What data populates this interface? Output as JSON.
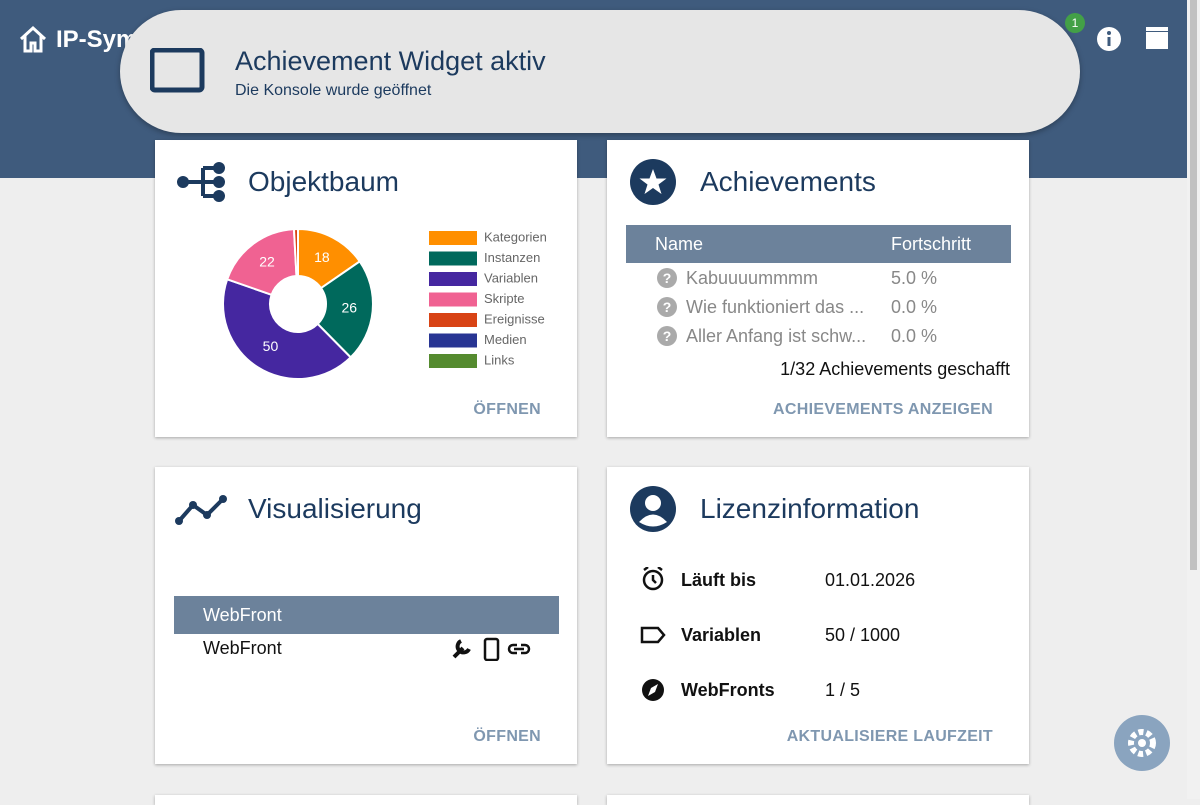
{
  "header": {
    "brand": "IP-Sym",
    "badge": "1"
  },
  "toast": {
    "title": "Achievement Widget aktiv",
    "subtitle": "Die Konsole wurde geöffnet"
  },
  "objektbaum": {
    "title": "Objektbaum",
    "action": "ÖFFNEN"
  },
  "chart_data": {
    "type": "pie",
    "donut": true,
    "legend": "right",
    "categories": [
      "Kategorien",
      "Instanzen",
      "Variablen",
      "Skripte",
      "Ereignisse",
      "Medien",
      "Links"
    ],
    "values": [
      18,
      26,
      50,
      22,
      1,
      0,
      0
    ],
    "colors": [
      "#ff8f00",
      "#00695c",
      "#4527a0",
      "#f06292",
      "#d84315",
      "#283593",
      "#558b2f"
    ]
  },
  "achievements": {
    "title": "Achievements",
    "columns": [
      "Name",
      "Fortschritt"
    ],
    "rows": [
      [
        "Kabuuuummmm",
        "5.0 %"
      ],
      [
        "Wie funktioniert das ...",
        "0.0 %"
      ],
      [
        "Aller Anfang ist schw...",
        "0.0 %"
      ]
    ],
    "summary": "1/32 Achievements geschafft",
    "action": "ACHIEVEMENTS ANZEIGEN"
  },
  "visualisierung": {
    "title": "Visualisierung",
    "column": "WebFront",
    "rows": [
      "WebFront"
    ],
    "action": "ÖFFNEN"
  },
  "lizenz": {
    "title": "Lizenzinformation",
    "rows": [
      [
        "Läuft bis",
        "01.01.2026"
      ],
      [
        "Variablen",
        "50 / 1000"
      ],
      [
        "WebFronts",
        "1 / 5"
      ]
    ],
    "action": "AKTUALISIERE LAUFZEIT"
  }
}
